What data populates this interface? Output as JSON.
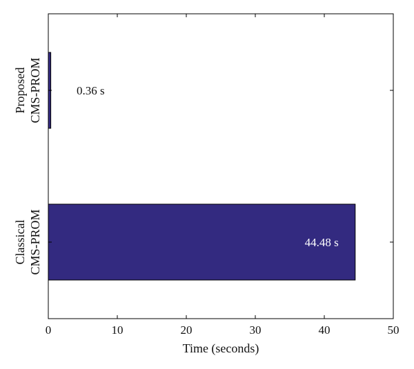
{
  "chart_data": {
    "type": "bar",
    "orientation": "horizontal",
    "categories": [
      [
        "Proposed",
        "CMS-PROM"
      ],
      [
        "Classical",
        "CMS-PROM"
      ]
    ],
    "values": [
      0.36,
      44.48
    ],
    "data_labels": [
      "0.36 s",
      "44.48 s"
    ],
    "xlabel": "Time (seconds)",
    "ylabel": "",
    "xlim": [
      0,
      50
    ],
    "xticks": [
      "0",
      "10",
      "20",
      "30",
      "40",
      "50"
    ],
    "grid": false,
    "legend": "none",
    "colors": {
      "bar_fill": "#332a80",
      "bar_stroke": "#000000",
      "label_inside": "#ffffff",
      "label_outside": "#111111"
    }
  }
}
